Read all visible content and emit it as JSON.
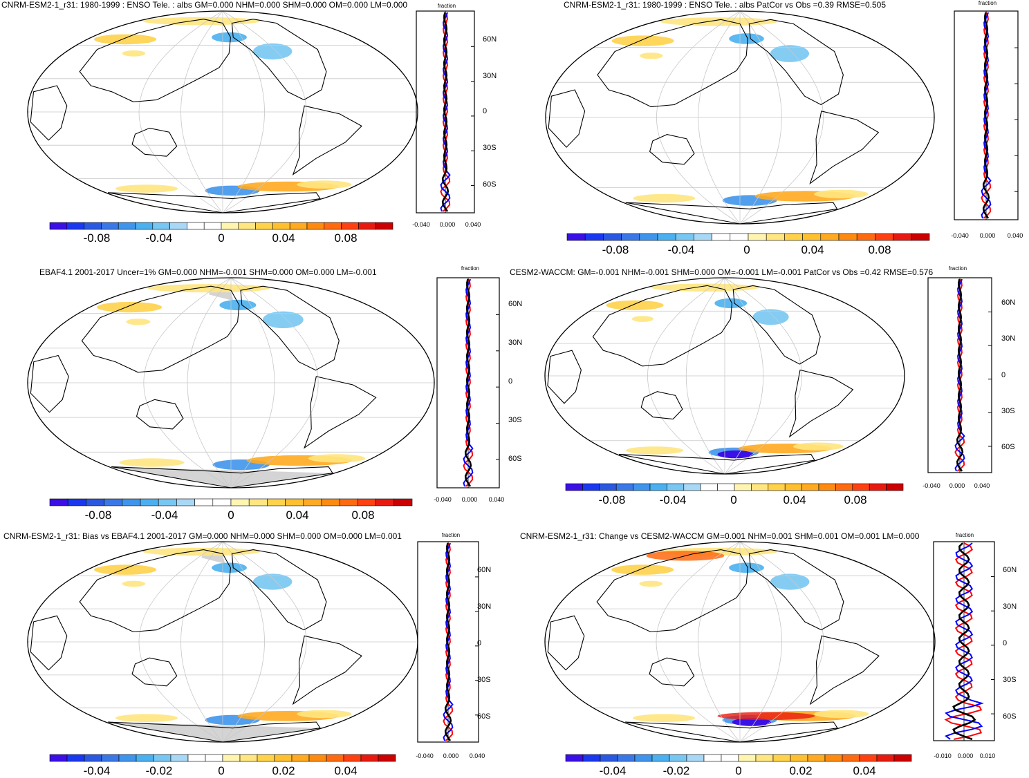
{
  "colorbar_colors": [
    "#3b10e6",
    "#1a38f0",
    "#2a58e0",
    "#3a78e8",
    "#3f95ec",
    "#4ab0f0",
    "#78c6f2",
    "#a8d8f5",
    "#ffffff",
    "#ffffff",
    "#fff5b0",
    "#ffe680",
    "#ffd24a",
    "#ffc030",
    "#ffaa20",
    "#ff8a10",
    "#ff6a10",
    "#ff4010",
    "#e81a10",
    "#cc0000"
  ],
  "panels": [
    {
      "title": "CNRM-ESM2-1_r31: 1980-1999 : ENSO Tele. : albs GM=0.000 NHM=0.000 SHM=0.000 OM=0.000 LM=0.000",
      "colorbar_labels": [
        "-0.08",
        "-0.04",
        "0",
        "0.04",
        "0.08"
      ],
      "zonal": {
        "unit": "fraction",
        "lat_labels": [
          "60N",
          "30N",
          "0",
          "30S",
          "60S"
        ],
        "x_labels": [
          "-0.040",
          "0.000",
          "0.040"
        ],
        "gray_land": false
      }
    },
    {
      "title": "CNRM-ESM2-1_r31: 1980-1999 : ENSO Tele. : albs PatCor vs Obs =0.39 RMSE=0.505",
      "colorbar_labels": [
        "-0.08",
        "-0.04",
        "0",
        "0.04",
        "0.08"
      ],
      "zonal": {
        "unit": "fraction",
        "lat_labels": [
          "",
          "",
          "",
          "",
          ""
        ],
        "x_labels": [
          "-0.040",
          "0.000",
          "0.040"
        ],
        "gray_land": false
      }
    },
    {
      "title": "EBAF4.1 2001-2017 Uncer=1% GM=0.000 NHM=-0.001 SHM=0.000 OM=0.000 LM=-0.001",
      "colorbar_labels": [
        "-0.08",
        "-0.04",
        "0",
        "0.04",
        "0.08"
      ],
      "zonal": {
        "unit": "fraction",
        "lat_labels": [
          "60N",
          "30N",
          "0",
          "30S",
          "60S"
        ],
        "x_labels": [
          "-0.040",
          "0.000",
          "0.040"
        ],
        "gray_land": true
      }
    },
    {
      "title": "CESM2-WACCM: GM=-0.001 NHM=-0.001 SHM=0.000 OM=-0.001 LM=-0.001 PatCor vs Obs =0.42 RMSE=0.576",
      "colorbar_labels": [
        "-0.08",
        "-0.04",
        "0",
        "0.04",
        "0.08"
      ],
      "zonal": {
        "unit": "fraction",
        "lat_labels": [
          "60N",
          "30N",
          "0",
          "30S",
          "60S"
        ],
        "x_labels": [
          "-0.040",
          "0.000",
          "0.040"
        ],
        "gray_land": false
      }
    },
    {
      "title": "CNRM-ESM2-1_r31: Bias vs EBAF4.1 2001-2017 GM=0.000 NHM=0.000 SHM=0.000 OM=0.000 LM=0.001",
      "colorbar_labels": [
        "-0.04",
        "-0.02",
        "0",
        "0.02",
        "0.04"
      ],
      "zonal": {
        "unit": "fraction",
        "lat_labels": [
          "60N",
          "30N",
          "0",
          "30S",
          "60S"
        ],
        "x_labels": [
          "-0.040",
          "0.000",
          "0.040"
        ],
        "gray_land": true
      }
    },
    {
      "title": "CNRM-ESM2-1_r31: Change vs CESM2-WACCM GM=0.001 NHM=0.001 SHM=0.001 OM=0.001 LM=0.000",
      "colorbar_labels": [
        "-0.04",
        "-0.02",
        "0",
        "0.02",
        "0.04"
      ],
      "zonal": {
        "unit": "fraction",
        "lat_labels": [
          "60N",
          "30N",
          "0",
          "30S",
          "60S"
        ],
        "x_labels": [
          "-0.010",
          "0.000",
          "0.010"
        ],
        "gray_land": false
      }
    }
  ]
}
